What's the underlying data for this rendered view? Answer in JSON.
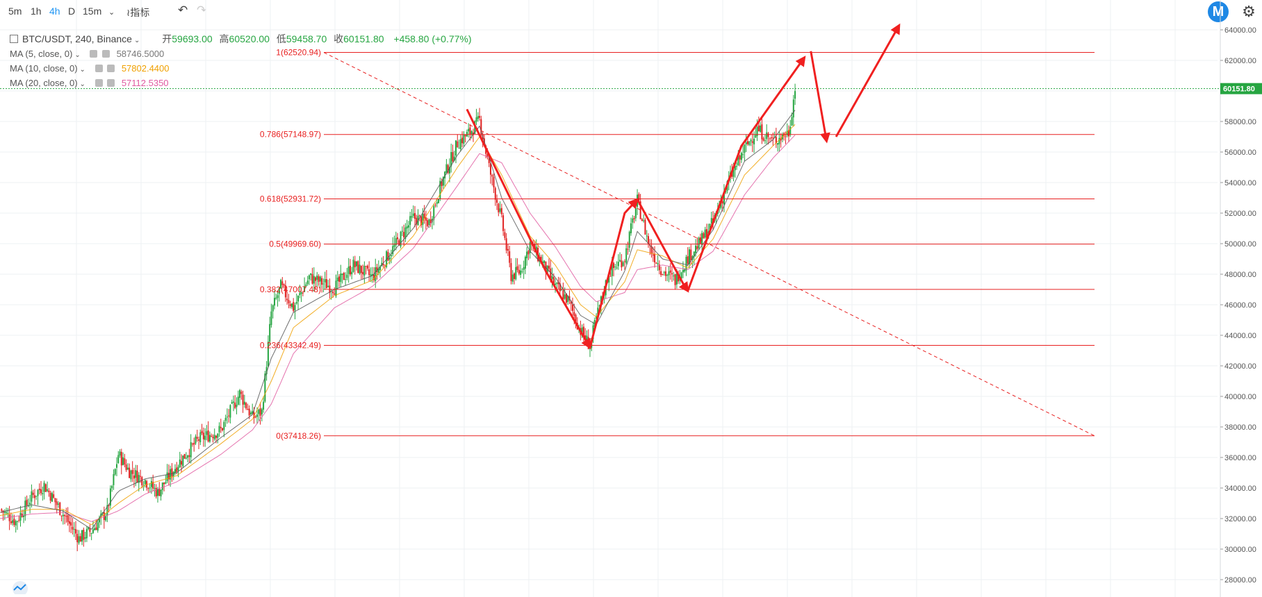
{
  "toolbar": {
    "intervals": [
      "5m",
      "1h",
      "4h",
      "D",
      "15m"
    ],
    "active_interval": "4h",
    "indicators_label": "指标"
  },
  "legend": {
    "symbol": "BTC/USDT, 240, Binance",
    "open_label": "开",
    "open": "59693.00",
    "high_label": "高",
    "high": "60520.00",
    "low_label": "低",
    "low": "59458.70",
    "close_label": "收",
    "close": "60151.80",
    "change": "+458.80 (+0.77%)",
    "ma": [
      {
        "name": "MA (5, close, 0)",
        "value": "58746.5000",
        "color": "#555555"
      },
      {
        "name": "MA (10, close, 0)",
        "value": "57802.4400",
        "color": "#f0a000"
      },
      {
        "name": "MA (20, close, 0)",
        "value": "57112.5350",
        "color": "#e05aa0"
      }
    ]
  },
  "colors": {
    "up": "#26a541",
    "down": "#e02020",
    "fib": "#e82020",
    "arrow": "#f02020",
    "ma5": "#555555",
    "ma10": "#f0a000",
    "ma20": "#e05aa0",
    "last_price_bg": "#26a541"
  },
  "chart_data": {
    "type": "candlestick",
    "symbol": "BTC/USDT",
    "interval": "240",
    "y_axis": {
      "min": 28000,
      "max": 64000,
      "ticks": [
        "64000.00",
        "62000.00",
        "60000.00",
        "58000.00",
        "56000.00",
        "54000.00",
        "52000.00",
        "50000.00",
        "48000.00",
        "46000.00",
        "44000.00",
        "42000.00",
        "40000.00",
        "38000.00",
        "36000.00",
        "34000.00",
        "32000.00",
        "30000.00",
        "28000.00"
      ]
    },
    "last_price": 60151.8,
    "last_price_label": "60151.80",
    "price_path": [
      [
        0,
        32600
      ],
      [
        10,
        31800
      ],
      [
        20,
        33400
      ],
      [
        28,
        34200
      ],
      [
        40,
        32300
      ],
      [
        50,
        30700
      ],
      [
        58,
        31200
      ],
      [
        68,
        32500
      ],
      [
        75,
        36200
      ],
      [
        82,
        35100
      ],
      [
        92,
        34500
      ],
      [
        100,
        33700
      ],
      [
        112,
        35500
      ],
      [
        126,
        37200
      ],
      [
        140,
        37800
      ],
      [
        152,
        40200
      ],
      [
        160,
        38600
      ],
      [
        166,
        39000
      ],
      [
        172,
        45500
      ],
      [
        178,
        47200
      ],
      [
        186,
        45800
      ],
      [
        196,
        47800
      ],
      [
        212,
        47100
      ],
      [
        224,
        48600
      ],
      [
        236,
        47800
      ],
      [
        250,
        49800
      ],
      [
        262,
        51700
      ],
      [
        272,
        51400
      ],
      [
        280,
        54000
      ],
      [
        290,
        56600
      ],
      [
        298,
        57300
      ],
      [
        304,
        58100
      ],
      [
        310,
        55000
      ],
      [
        318,
        51500
      ],
      [
        324,
        47900
      ],
      [
        330,
        48200
      ],
      [
        336,
        50000
      ],
      [
        344,
        48700
      ],
      [
        352,
        47200
      ],
      [
        360,
        46300
      ],
      [
        368,
        44300
      ],
      [
        374,
        43300
      ],
      [
        378,
        45100
      ],
      [
        386,
        48100
      ],
      [
        396,
        49100
      ],
      [
        404,
        52800
      ],
      [
        412,
        49700
      ],
      [
        420,
        48200
      ],
      [
        428,
        47600
      ],
      [
        436,
        49100
      ],
      [
        444,
        50100
      ],
      [
        452,
        51400
      ],
      [
        462,
        54100
      ],
      [
        472,
        56200
      ],
      [
        480,
        57500
      ],
      [
        490,
        56700
      ],
      [
        500,
        57300
      ],
      [
        504,
        60151
      ]
    ],
    "ma5_path": [
      [
        0,
        32400
      ],
      [
        20,
        32900
      ],
      [
        40,
        32500
      ],
      [
        58,
        31300
      ],
      [
        75,
        33800
      ],
      [
        92,
        34600
      ],
      [
        112,
        35000
      ],
      [
        140,
        37300
      ],
      [
        160,
        38800
      ],
      [
        172,
        42500
      ],
      [
        186,
        45500
      ],
      [
        212,
        47000
      ],
      [
        236,
        47900
      ],
      [
        262,
        51000
      ],
      [
        290,
        55800
      ],
      [
        304,
        57700
      ],
      [
        318,
        53000
      ],
      [
        336,
        49500
      ],
      [
        352,
        47800
      ],
      [
        368,
        45300
      ],
      [
        378,
        44700
      ],
      [
        396,
        48200
      ],
      [
        404,
        50800
      ],
      [
        420,
        49000
      ],
      [
        436,
        48600
      ],
      [
        452,
        50900
      ],
      [
        472,
        55400
      ],
      [
        490,
        56800
      ],
      [
        504,
        58746
      ]
    ],
    "ma10_path": [
      [
        0,
        32200
      ],
      [
        20,
        32600
      ],
      [
        40,
        32600
      ],
      [
        58,
        31600
      ],
      [
        75,
        33000
      ],
      [
        92,
        34200
      ],
      [
        112,
        34800
      ],
      [
        140,
        36900
      ],
      [
        160,
        38500
      ],
      [
        172,
        41000
      ],
      [
        186,
        44500
      ],
      [
        212,
        46600
      ],
      [
        236,
        47600
      ],
      [
        262,
        50500
      ],
      [
        290,
        55000
      ],
      [
        304,
        57000
      ],
      [
        318,
        54500
      ],
      [
        336,
        50500
      ],
      [
        352,
        48600
      ],
      [
        368,
        46000
      ],
      [
        378,
        45200
      ],
      [
        396,
        47500
      ],
      [
        404,
        49600
      ],
      [
        420,
        49200
      ],
      [
        436,
        48400
      ],
      [
        452,
        50300
      ],
      [
        472,
        54500
      ],
      [
        490,
        56400
      ],
      [
        504,
        57802
      ]
    ],
    "ma20_path": [
      [
        0,
        32000
      ],
      [
        20,
        32300
      ],
      [
        40,
        32400
      ],
      [
        58,
        31800
      ],
      [
        75,
        32500
      ],
      [
        92,
        33600
      ],
      [
        112,
        34400
      ],
      [
        140,
        36200
      ],
      [
        160,
        37800
      ],
      [
        172,
        39500
      ],
      [
        186,
        42800
      ],
      [
        212,
        45800
      ],
      [
        236,
        47200
      ],
      [
        262,
        49700
      ],
      [
        290,
        53800
      ],
      [
        304,
        55900
      ],
      [
        318,
        55300
      ],
      [
        336,
        52000
      ],
      [
        352,
        49800
      ],
      [
        368,
        47200
      ],
      [
        378,
        46200
      ],
      [
        396,
        46800
      ],
      [
        404,
        48300
      ],
      [
        420,
        48600
      ],
      [
        436,
        48300
      ],
      [
        452,
        49500
      ],
      [
        472,
        53200
      ],
      [
        490,
        55600
      ],
      [
        504,
        57112
      ]
    ],
    "fib_levels": [
      {
        "ratio": "1",
        "price": 62520.94,
        "label": "1(62520.94)"
      },
      {
        "ratio": "0.786",
        "price": 57148.97,
        "label": "0.786(57148.97)"
      },
      {
        "ratio": "0.618",
        "price": 52931.72,
        "label": "0.618(52931.72)"
      },
      {
        "ratio": "0.5",
        "price": 49969.6,
        "label": "0.5(49969.60)"
      },
      {
        "ratio": "0.382",
        "price": 47007.48,
        "label": "0.382(47007.48)"
      },
      {
        "ratio": "0.236",
        "price": 43342.49,
        "label": "0.236(43342.49)"
      },
      {
        "ratio": "0",
        "price": 37418.26,
        "label": "0(37418.26)"
      }
    ],
    "trend_line": {
      "from": [
        0,
        62520
      ],
      "to": [
        600,
        37418
      ]
    },
    "drawn_arrows": [
      [
        [
          296,
          58800
        ],
        [
          346,
          48200
        ],
        [
          374,
          43200
        ]
      ],
      [
        [
          374,
          43200
        ],
        [
          396,
          52000
        ],
        [
          404,
          52900
        ]
      ],
      [
        [
          404,
          52900
        ],
        [
          434,
          47200
        ],
        [
          436,
          46900
        ]
      ],
      [
        [
          436,
          46900
        ],
        [
          470,
          56400
        ],
        [
          510,
          62200
        ]
      ],
      [
        [
          514,
          62600
        ],
        [
          524,
          56700
        ]
      ],
      [
        [
          530,
          57000
        ],
        [
          570,
          64300
        ]
      ]
    ]
  }
}
